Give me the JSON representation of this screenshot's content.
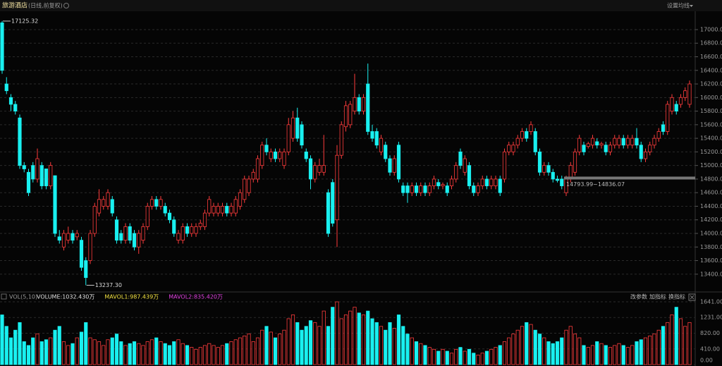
{
  "chart_data": {
    "type": "candlestick",
    "title": "旅游酒店",
    "subtitle": "(日线,前复权)",
    "ma_button": "设置均线",
    "up_color": "#ff3c3c",
    "down_color": "#19f0f0",
    "grid": true,
    "ylim": [
      13180,
      17280
    ],
    "yticks": [
      {
        "value": 13400,
        "label": "13400.00"
      },
      {
        "value": 13600,
        "label": "13600.00"
      },
      {
        "value": 13800,
        "label": "13800.00"
      },
      {
        "value": 14000,
        "label": "14000.00"
      },
      {
        "value": 14200,
        "label": "14200.00"
      },
      {
        "value": 14400,
        "label": "14400.00"
      },
      {
        "value": 14600,
        "label": "14600.00"
      },
      {
        "value": 14800,
        "label": "14800.00"
      },
      {
        "value": 15000,
        "label": "15000.00"
      },
      {
        "value": 15200,
        "label": "15200.00"
      },
      {
        "value": 15400,
        "label": "15400.00"
      },
      {
        "value": 15600,
        "label": "15600.00"
      },
      {
        "value": 15800,
        "label": "15800.00"
      },
      {
        "value": 16000,
        "label": "16000.00"
      },
      {
        "value": 16200,
        "label": "16200.00"
      },
      {
        "value": 16400,
        "label": "16400.00"
      },
      {
        "value": 16600,
        "label": "16600.00"
      },
      {
        "value": 16800,
        "label": "16800.00"
      },
      {
        "value": 17000,
        "label": "17000.00"
      }
    ],
    "extremes": {
      "high": 17125.32,
      "high_label": "17125.32",
      "low": 13237.3,
      "low_label": "13237.30"
    },
    "range_marker": {
      "low": 14793.99,
      "high": 14836.07,
      "label": "14793.99~14836.07"
    },
    "ohlc": [
      [
        17100,
        17125.32,
        16350,
        16400
      ],
      [
        16200,
        16300,
        16050,
        16100
      ],
      [
        16000,
        16050,
        15800,
        15900
      ],
      [
        15900,
        15950,
        15750,
        15800
      ],
      [
        15700,
        15750,
        14950,
        15000
      ],
      [
        15000,
        15050,
        14900,
        14950
      ],
      [
        14900,
        14950,
        14550,
        14600
      ],
      [
        15000,
        15050,
        14750,
        14800
      ],
      [
        14800,
        15250,
        14750,
        15100
      ],
      [
        15000,
        15050,
        14650,
        14700
      ],
      [
        14950,
        14950,
        14650,
        14700
      ],
      [
        14700,
        15050,
        14650,
        15000
      ],
      [
        14850,
        14850,
        13950,
        14000
      ],
      [
        13950,
        14050,
        13850,
        13900
      ],
      [
        13800,
        14050,
        13750,
        14000
      ],
      [
        13900,
        14100,
        13850,
        14000
      ],
      [
        14000,
        14050,
        13850,
        13900
      ],
      [
        13950,
        14050,
        13900,
        14000
      ],
      [
        13900,
        13950,
        13450,
        13500
      ],
      [
        13600,
        13650,
        13237.3,
        13350
      ],
      [
        13600,
        14050,
        13550,
        14000
      ],
      [
        14000,
        14450,
        13950,
        14400
      ],
      [
        14300,
        14650,
        14250,
        14500
      ],
      [
        14400,
        14550,
        14350,
        14500
      ],
      [
        14400,
        14650,
        14350,
        14600
      ],
      [
        14500,
        14550,
        14250,
        14300
      ],
      [
        14200,
        14250,
        13850,
        13900
      ],
      [
        14000,
        14050,
        13850,
        13900
      ],
      [
        13900,
        14150,
        13850,
        14100
      ],
      [
        14100,
        14150,
        13850,
        13900
      ],
      [
        14000,
        14050,
        13750,
        13800
      ],
      [
        13800,
        14050,
        13700,
        14000
      ],
      [
        13900,
        14150,
        13850,
        14100
      ],
      [
        14100,
        14450,
        14050,
        14400
      ],
      [
        14400,
        14550,
        14350,
        14500
      ],
      [
        14500,
        14550,
        14350,
        14400
      ],
      [
        14400,
        14550,
        14350,
        14500
      ],
      [
        14400,
        14450,
        14250,
        14300
      ],
      [
        14300,
        14350,
        14150,
        14200
      ],
      [
        14200,
        14250,
        13950,
        14000
      ],
      [
        13900,
        14050,
        13850,
        14000
      ],
      [
        13900,
        14150,
        13850,
        14100
      ],
      [
        14100,
        14150,
        13950,
        14000
      ],
      [
        14000,
        14150,
        13950,
        14100
      ],
      [
        14000,
        14150,
        13950,
        14100
      ],
      [
        14100,
        14200,
        14050,
        14150
      ],
      [
        14100,
        14350,
        14050,
        14300
      ],
      [
        14300,
        14550,
        14250,
        14500
      ],
      [
        14300,
        14450,
        14250,
        14400
      ],
      [
        14300,
        14450,
        14250,
        14400
      ],
      [
        14300,
        14450,
        14250,
        14400
      ],
      [
        14400,
        14450,
        14250,
        14300
      ],
      [
        14300,
        14450,
        14250,
        14400
      ],
      [
        14300,
        14550,
        14250,
        14500
      ],
      [
        14400,
        14650,
        14350,
        14600
      ],
      [
        14500,
        14850,
        14450,
        14800
      ],
      [
        14600,
        14850,
        14550,
        14800
      ],
      [
        14800,
        14950,
        14750,
        14900
      ],
      [
        14800,
        15150,
        14750,
        15100
      ],
      [
        15000,
        15350,
        14950,
        15300
      ],
      [
        15300,
        15400,
        15150,
        15200
      ],
      [
        15100,
        15250,
        15050,
        15200
      ],
      [
        15200,
        15250,
        15050,
        15100
      ],
      [
        15100,
        15250,
        15050,
        15200
      ],
      [
        15000,
        15250,
        14950,
        15200
      ],
      [
        15200,
        15700,
        15150,
        15600
      ],
      [
        15400,
        15800,
        15350,
        15700
      ],
      [
        15700,
        15850,
        15350,
        15400
      ],
      [
        15600,
        15650,
        15250,
        15300
      ],
      [
        15200,
        15250,
        15050,
        15100
      ],
      [
        15100,
        15150,
        14650,
        14800
      ],
      [
        14800,
        15050,
        14750,
        15000
      ],
      [
        14900,
        15100,
        14850,
        15000
      ],
      [
        14900,
        15450,
        14850,
        15000
      ],
      [
        14600,
        14650,
        13950,
        14000
      ],
      [
        14750,
        14800,
        14100,
        14150
      ],
      [
        14200,
        15300,
        13800,
        15150
      ],
      [
        15150,
        15650,
        15100,
        15600
      ],
      [
        15570,
        15950,
        15500,
        15880
      ],
      [
        15600,
        15950,
        15550,
        15900
      ],
      [
        15800,
        16350,
        15750,
        16000
      ],
      [
        16000,
        16050,
        15750,
        15800
      ],
      [
        15800,
        16050,
        15750,
        16000
      ],
      [
        16200,
        16500,
        15450,
        15500
      ],
      [
        15500,
        15600,
        15350,
        15400
      ],
      [
        15500,
        15550,
        15250,
        15300
      ],
      [
        15200,
        15450,
        15150,
        15400
      ],
      [
        15300,
        15350,
        15050,
        15100
      ],
      [
        15100,
        15150,
        14850,
        14900
      ],
      [
        14900,
        15150,
        14850,
        15100
      ],
      [
        15300,
        15350,
        14750,
        14800
      ],
      [
        14700,
        14750,
        14550,
        14600
      ],
      [
        14700,
        14750,
        14450,
        14600
      ],
      [
        14600,
        14750,
        14550,
        14700
      ],
      [
        14700,
        14750,
        14550,
        14600
      ],
      [
        14600,
        14750,
        14550,
        14700
      ],
      [
        14700,
        14750,
        14550,
        14600
      ],
      [
        14600,
        14750,
        14550,
        14700
      ],
      [
        14700,
        14850,
        14650,
        14800
      ],
      [
        14750,
        14800,
        14650,
        14700
      ],
      [
        14700,
        14750,
        14650,
        14720
      ],
      [
        14700,
        14750,
        14550,
        14600
      ],
      [
        14700,
        14850,
        14650,
        14800
      ],
      [
        14800,
        15050,
        14750,
        15000
      ],
      [
        15200,
        15250,
        14950,
        15000
      ],
      [
        14900,
        15150,
        14850,
        15100
      ],
      [
        15000,
        15050,
        14650,
        14700
      ],
      [
        14700,
        14750,
        14550,
        14600
      ],
      [
        14600,
        14750,
        14550,
        14700
      ],
      [
        14700,
        14850,
        14650,
        14800
      ],
      [
        14800,
        14850,
        14650,
        14700
      ],
      [
        14700,
        14850,
        14650,
        14800
      ],
      [
        14700,
        14850,
        14650,
        14800
      ],
      [
        14800,
        14850,
        14550,
        14600
      ],
      [
        14800,
        15250,
        14750,
        15200
      ],
      [
        15200,
        15350,
        15150,
        15300
      ],
      [
        15200,
        15350,
        15150,
        15300
      ],
      [
        15300,
        15450,
        15250,
        15400
      ],
      [
        15400,
        15550,
        15350,
        15500
      ],
      [
        15500,
        15550,
        15350,
        15400
      ],
      [
        15500,
        15650,
        15450,
        15600
      ],
      [
        15500,
        15550,
        15150,
        15200
      ],
      [
        15200,
        15250,
        14850,
        14900
      ],
      [
        14900,
        15050,
        14850,
        15000
      ],
      [
        15000,
        15050,
        14850,
        14900
      ],
      [
        14900,
        14950,
        14750,
        14800
      ],
      [
        14800,
        14850,
        14750,
        14780
      ],
      [
        14800,
        14850,
        14650,
        14700
      ],
      [
        14600,
        14850,
        14550,
        14800
      ],
      [
        14800,
        15050,
        14750,
        15000
      ],
      [
        14900,
        15250,
        14850,
        15200
      ],
      [
        15200,
        15450,
        15150,
        15400
      ],
      [
        15300,
        15350,
        15150,
        15200
      ],
      [
        15280,
        15350,
        15250,
        15320
      ],
      [
        15300,
        15450,
        15250,
        15400
      ],
      [
        15350,
        15400,
        15250,
        15300
      ],
      [
        15300,
        15350,
        15250,
        15320
      ],
      [
        15300,
        15350,
        15150,
        15200
      ],
      [
        15200,
        15350,
        15150,
        15300
      ],
      [
        15300,
        15450,
        15250,
        15400
      ],
      [
        15300,
        15450,
        15250,
        15400
      ],
      [
        15400,
        15450,
        15250,
        15300
      ],
      [
        15300,
        15450,
        15250,
        15400
      ],
      [
        15300,
        15450,
        15250,
        15400
      ],
      [
        15400,
        15550,
        15250,
        15300
      ],
      [
        15300,
        15350,
        15050,
        15100
      ],
      [
        15100,
        15250,
        15050,
        15200
      ],
      [
        15200,
        15350,
        15150,
        15300
      ],
      [
        15300,
        15450,
        15250,
        15400
      ],
      [
        15400,
        15550,
        15350,
        15500
      ],
      [
        15600,
        15650,
        15450,
        15500
      ],
      [
        15500,
        15950,
        15450,
        15900
      ],
      [
        15800,
        16050,
        15750,
        16000
      ],
      [
        15900,
        15950,
        15750,
        15800
      ],
      [
        15900,
        16050,
        15850,
        16000
      ],
      [
        16000,
        16150,
        15950,
        16100
      ],
      [
        15900,
        16250,
        15850,
        16200
      ]
    ],
    "volume": {
      "title": "VOL(5,10)",
      "legend": [
        {
          "label": "VOLUME:1032.430万",
          "color": "#e0e0e0"
        },
        {
          "label": "MAVOL1:987.439万",
          "color": "#f0e040"
        },
        {
          "label": "MAVOL2:835.420万",
          "color": "#e040e0"
        }
      ],
      "buttons": [
        "改参数",
        "加指标",
        "换指标"
      ],
      "ylim": [
        0,
        1641
      ],
      "yticks": [
        {
          "value": 1641,
          "label": "1641.00"
        },
        {
          "value": 1231,
          "label": "1231.00"
        },
        {
          "value": 820,
          "label": "820.00"
        },
        {
          "value": 410,
          "label": "410.00"
        },
        {
          "value": 0,
          "label": "0.00"
        }
      ],
      "values": [
        1300,
        1000,
        700,
        900,
        1100,
        600,
        500,
        700,
        800,
        600,
        650,
        700,
        900,
        1000,
        600,
        500,
        550,
        700,
        850,
        1100,
        700,
        650,
        600,
        500,
        650,
        700,
        800,
        600,
        500,
        550,
        600,
        550,
        500,
        600,
        650,
        700,
        600,
        550,
        500,
        600,
        650,
        550,
        500,
        450,
        400,
        450,
        500,
        550,
        500,
        450,
        500,
        550,
        600,
        650,
        700,
        750,
        800,
        600,
        700,
        900,
        1000,
        850,
        700,
        800,
        900,
        1200,
        1300,
        1100,
        900,
        1000,
        1150,
        1100,
        1000,
        1400,
        1000,
        1500,
        1641,
        1200,
        1300,
        1400,
        1500,
        1350,
        1300,
        1400,
        1200,
        1100,
        1000,
        900,
        1100,
        950,
        1300,
        1000,
        800,
        700,
        600,
        550,
        500,
        450,
        400,
        350,
        400,
        350,
        300,
        400,
        450,
        350,
        400,
        300,
        250,
        300,
        350,
        400,
        450,
        500,
        600,
        700,
        800,
        900,
        1000,
        1100,
        1050,
        900,
        800,
        700,
        600,
        550,
        600,
        700,
        900,
        1000,
        800,
        700,
        500,
        450,
        500,
        600,
        550,
        500,
        450,
        500,
        550,
        500,
        450,
        500,
        600,
        650,
        700,
        750,
        800,
        900,
        1000,
        1100,
        1300,
        1500,
        1200,
        1000,
        1100
      ]
    }
  }
}
